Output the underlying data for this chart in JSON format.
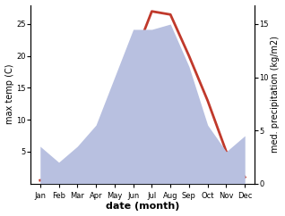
{
  "months": [
    "Jan",
    "Feb",
    "Mar",
    "Apr",
    "May",
    "Jun",
    "Jul",
    "Aug",
    "Sep",
    "Oct",
    "Nov",
    "Dec"
  ],
  "month_positions": [
    1,
    2,
    3,
    4,
    5,
    6,
    7,
    8,
    9,
    10,
    11,
    12
  ],
  "temperature": [
    0.5,
    1.0,
    3.5,
    8.0,
    14.0,
    19.5,
    27.0,
    26.5,
    20.0,
    13.0,
    5.0,
    1.0
  ],
  "precipitation": [
    3.5,
    2.0,
    3.5,
    5.5,
    10.0,
    14.5,
    14.5,
    15.0,
    11.0,
    5.5,
    3.0,
    4.5
  ],
  "temp_color": "#c0392b",
  "precip_color": "#b8c0e0",
  "ylabel_left": "max temp (C)",
  "ylabel_right": "med. precipitation (kg/m2)",
  "xlabel": "date (month)",
  "ylim_left": [
    0,
    28
  ],
  "ylim_right": [
    0,
    16.8
  ],
  "yticks_left": [
    5,
    10,
    15,
    20,
    25
  ],
  "yticks_right": [
    0,
    5,
    10,
    15
  ],
  "xlim": [
    0.5,
    12.5
  ],
  "background_color": "#ffffff",
  "temp_linewidth": 2.0,
  "label_fontsize": 7,
  "tick_fontsize": 6,
  "xlabel_fontsize": 8
}
